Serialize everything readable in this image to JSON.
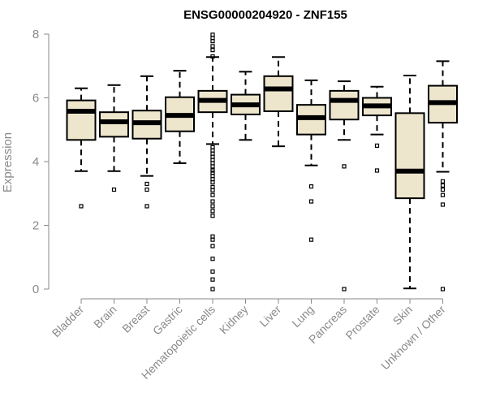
{
  "chart_data": {
    "type": "box",
    "title": "ENSG00000204920 - ZNF155",
    "ylabel": "Expression",
    "xlabel": "",
    "ylim": [
      0,
      8
    ],
    "yticks": [
      0,
      2,
      4,
      6,
      8
    ],
    "box_fill": "#ede6cc",
    "categories": [
      "Bladder",
      "Brain",
      "Breast",
      "Gastric",
      "Hematopoietic cells",
      "Kidney",
      "Liver",
      "Lung",
      "Pancreas",
      "Prostate",
      "Skin",
      "Unknown / Other"
    ],
    "boxes": [
      {
        "whisker_low": 3.7,
        "q1": 4.68,
        "median": 5.58,
        "q3": 5.92,
        "whisker_high": 6.3,
        "outliers": [
          2.6
        ]
      },
      {
        "whisker_low": 3.7,
        "q1": 4.78,
        "median": 5.25,
        "q3": 5.55,
        "whisker_high": 6.4,
        "outliers": [
          3.12
        ]
      },
      {
        "whisker_low": 3.55,
        "q1": 4.72,
        "median": 5.22,
        "q3": 5.6,
        "whisker_high": 6.68,
        "outliers": [
          2.6,
          3.12,
          3.3
        ]
      },
      {
        "whisker_low": 3.95,
        "q1": 4.95,
        "median": 5.45,
        "q3": 6.02,
        "whisker_high": 6.85,
        "outliers": []
      },
      {
        "whisker_low": 4.55,
        "q1": 5.55,
        "median": 5.92,
        "q3": 6.22,
        "whisker_high": 7.28,
        "outliers": [
          0.0,
          0.3,
          0.55,
          0.95,
          1.35,
          1.55,
          1.65,
          2.3,
          2.45,
          2.6,
          2.75,
          2.95,
          3.1,
          3.2,
          3.35,
          3.45,
          3.55,
          3.65,
          3.72,
          3.85,
          3.95,
          4.05,
          4.15,
          4.25,
          4.35,
          4.45,
          7.3,
          7.5,
          7.62,
          7.78,
          7.88,
          7.98
        ]
      },
      {
        "whisker_low": 4.68,
        "q1": 5.48,
        "median": 5.78,
        "q3": 6.1,
        "whisker_high": 6.82,
        "outliers": []
      },
      {
        "whisker_low": 4.48,
        "q1": 5.58,
        "median": 6.28,
        "q3": 6.68,
        "whisker_high": 7.28,
        "outliers": []
      },
      {
        "whisker_low": 3.88,
        "q1": 4.85,
        "median": 5.38,
        "q3": 5.78,
        "whisker_high": 6.55,
        "outliers": [
          1.55,
          2.75,
          3.22
        ]
      },
      {
        "whisker_low": 4.68,
        "q1": 5.32,
        "median": 5.92,
        "q3": 6.22,
        "whisker_high": 6.52,
        "outliers": [
          0.0,
          3.85
        ]
      },
      {
        "whisker_low": 4.85,
        "q1": 5.45,
        "median": 5.75,
        "q3": 6.0,
        "whisker_high": 6.35,
        "outliers": [
          3.72,
          4.5
        ]
      },
      {
        "whisker_low": 0.02,
        "q1": 2.85,
        "median": 3.7,
        "q3": 5.52,
        "whisker_high": 6.7,
        "outliers": []
      },
      {
        "whisker_low": 3.68,
        "q1": 5.22,
        "median": 5.85,
        "q3": 6.38,
        "whisker_high": 7.15,
        "outliers": [
          0.0,
          2.65,
          2.95,
          3.12,
          3.25,
          3.38
        ]
      }
    ]
  }
}
